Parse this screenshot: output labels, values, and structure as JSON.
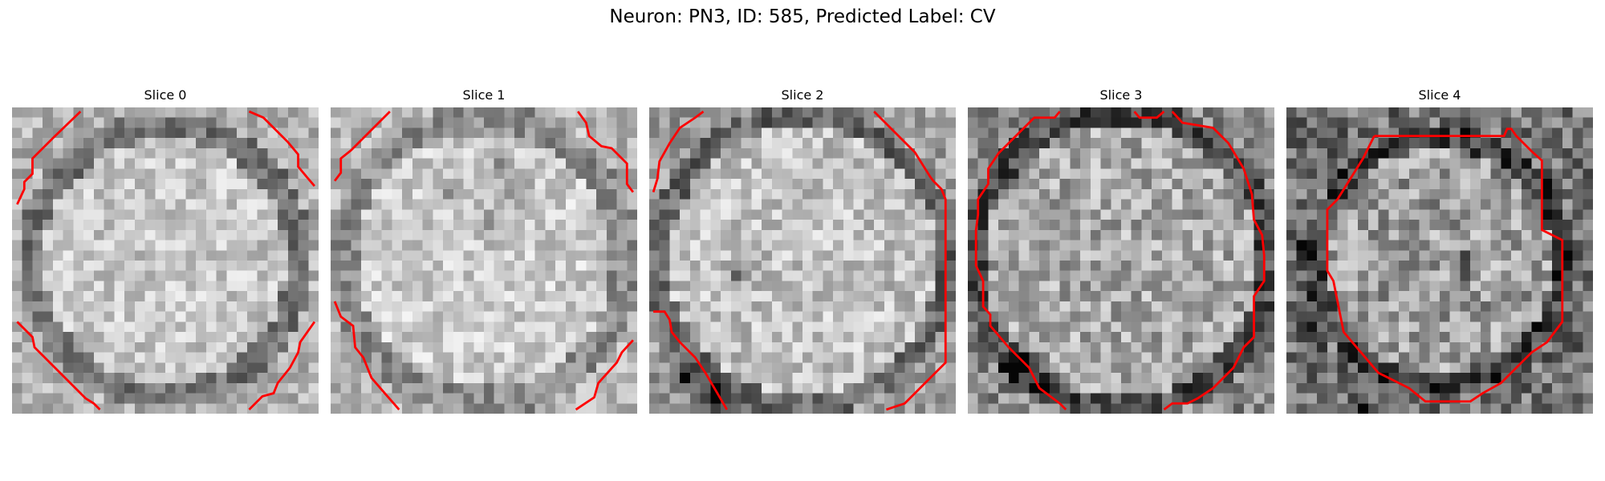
{
  "figure": {
    "title": "Neuron: PN3, ID: 585, Predicted Label: CV"
  },
  "panels": [
    {
      "title": "Slice 0"
    },
    {
      "title": "Slice 1"
    },
    {
      "title": "Slice 2"
    },
    {
      "title": "Slice 3"
    },
    {
      "title": "Slice 4"
    }
  ],
  "style": {
    "contour_color": "#ff0000",
    "colormap": "grayscale",
    "grid_size": 30
  }
}
